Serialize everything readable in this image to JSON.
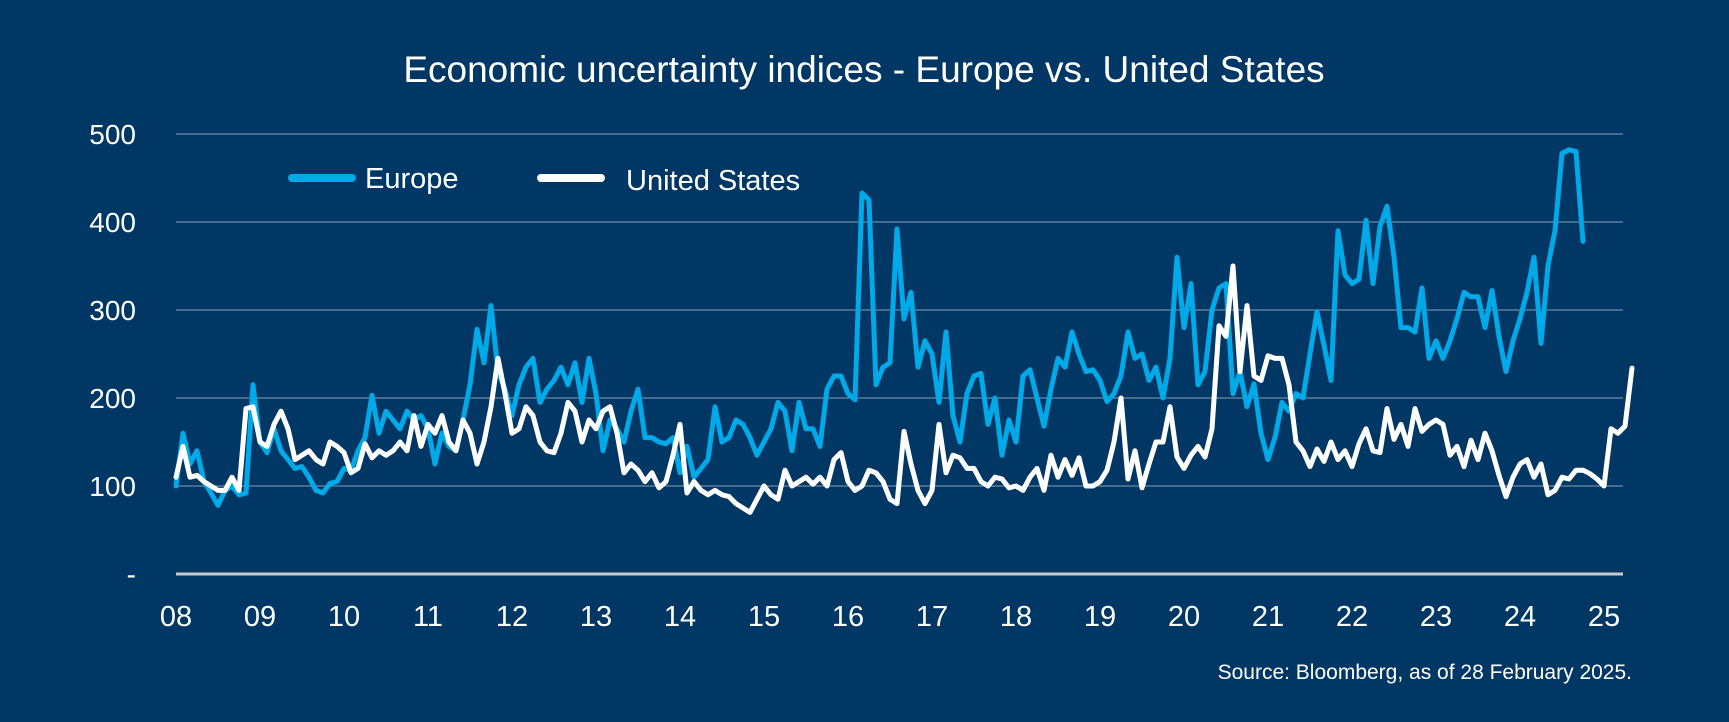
{
  "chart_data": {
    "type": "line",
    "title": "Economic uncertainty indices - Europe vs. United States",
    "xlabel": "",
    "ylabel": "",
    "x_start": "2008-01",
    "x_frequency": "monthly",
    "x_ticks": [
      "08",
      "09",
      "10",
      "11",
      "12",
      "13",
      "14",
      "15",
      "16",
      "17",
      "18",
      "19",
      "20",
      "21",
      "22",
      "23",
      "24",
      "25"
    ],
    "y_ticks": [
      "-",
      "100",
      "200",
      "300",
      "400",
      "500"
    ],
    "ylim": [
      0,
      500
    ],
    "grid": true,
    "legend_position": "top-left",
    "series": [
      {
        "name": "Europe",
        "color": "#00a9e8",
        "values": [
          100,
          160,
          125,
          140,
          105,
          92,
          78,
          95,
          100,
          90,
          92,
          215,
          150,
          138,
          165,
          140,
          130,
          120,
          122,
          110,
          95,
          92,
          103,
          105,
          120,
          118,
          140,
          155,
          203,
          160,
          185,
          175,
          165,
          185,
          175,
          180,
          165,
          125,
          160,
          145,
          140,
          175,
          215,
          278,
          240,
          305,
          230,
          210,
          180,
          215,
          235,
          245,
          195,
          210,
          220,
          235,
          215,
          240,
          195,
          245,
          205,
          140,
          175,
          165,
          150,
          185,
          210,
          155,
          155,
          150,
          148,
          155,
          115,
          145,
          110,
          120,
          130,
          190,
          150,
          155,
          175,
          170,
          155,
          135,
          150,
          165,
          195,
          185,
          140,
          195,
          165,
          165,
          145,
          210,
          225,
          225,
          205,
          198,
          433,
          425,
          215,
          235,
          240,
          392,
          290,
          320,
          235,
          265,
          250,
          195,
          275,
          180,
          150,
          205,
          225,
          228,
          170,
          200,
          135,
          175,
          150,
          225,
          232,
          200,
          168,
          210,
          245,
          235,
          275,
          250,
          230,
          232,
          220,
          196,
          205,
          225,
          275,
          245,
          250,
          220,
          235,
          200,
          245,
          360,
          280,
          330,
          215,
          230,
          300,
          325,
          330,
          205,
          230,
          190,
          216,
          160,
          130,
          155,
          195,
          185,
          205,
          200,
          250,
          298,
          260,
          220,
          390,
          340,
          330,
          335,
          402,
          330,
          395,
          418,
          360,
          280,
          280,
          275,
          325,
          245,
          265,
          245,
          265,
          290,
          320,
          315,
          315,
          280,
          322,
          270,
          230,
          265,
          290,
          320,
          360,
          262,
          350,
          390,
          478,
          482,
          480,
          378
        ]
      },
      {
        "name": "United States",
        "color": "#ffffff",
        "values": [
          110,
          145,
          110,
          112,
          105,
          100,
          95,
          95,
          110,
          95,
          188,
          190,
          150,
          145,
          170,
          185,
          165,
          130,
          135,
          140,
          130,
          125,
          150,
          145,
          138,
          115,
          120,
          148,
          132,
          140,
          135,
          140,
          150,
          140,
          180,
          145,
          170,
          160,
          180,
          150,
          140,
          175,
          160,
          125,
          150,
          190,
          245,
          205,
          160,
          165,
          190,
          180,
          150,
          140,
          138,
          160,
          195,
          185,
          150,
          175,
          165,
          185,
          190,
          160,
          115,
          125,
          118,
          105,
          115,
          98,
          105,
          135,
          170,
          92,
          105,
          95,
          90,
          95,
          90,
          88,
          80,
          75,
          70,
          85,
          100,
          90,
          85,
          118,
          100,
          105,
          110,
          102,
          110,
          100,
          130,
          138,
          105,
          95,
          100,
          118,
          115,
          105,
          85,
          80,
          162,
          125,
          95,
          80,
          95,
          170,
          115,
          135,
          132,
          120,
          120,
          105,
          100,
          110,
          108,
          98,
          100,
          95,
          110,
          120,
          95,
          135,
          110,
          130,
          112,
          132,
          100,
          100,
          105,
          118,
          150,
          200,
          108,
          140,
          98,
          125,
          150,
          150,
          190,
          133,
          120,
          135,
          145,
          133,
          165,
          282,
          270,
          350,
          230,
          305,
          225,
          220,
          248,
          245,
          245,
          215,
          150,
          140,
          122,
          142,
          128,
          150,
          130,
          140,
          122,
          148,
          165,
          140,
          138,
          188,
          153,
          170,
          145,
          188,
          162,
          170,
          175,
          170,
          135,
          145,
          122,
          152,
          130,
          160,
          140,
          112,
          88,
          110,
          125,
          130,
          110,
          125,
          90,
          95,
          110,
          108,
          118,
          118,
          114,
          108,
          100,
          165,
          160,
          168,
          234
        ]
      }
    ]
  },
  "legend": {
    "items": [
      {
        "label": "Europe",
        "color": "#00a9e8"
      },
      {
        "label": "United States",
        "color": "#ffffff"
      }
    ]
  },
  "source": "Source: Bloomberg, as of 28 February 2025."
}
